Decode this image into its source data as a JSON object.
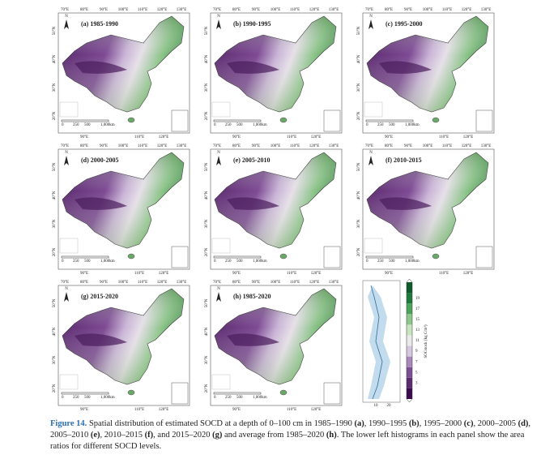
{
  "panels": [
    {
      "title": "(a) 1985-1990"
    },
    {
      "title": "(b) 1990-1995"
    },
    {
      "title": "(c) 1995-2000"
    },
    {
      "title": "(d) 2000-2005"
    },
    {
      "title": "(e) 2005-2010"
    },
    {
      "title": "(f) 2010-2015"
    },
    {
      "title": "(g) 2015-2020"
    },
    {
      "title": "(h) 1985-2020"
    }
  ],
  "map_labels": {
    "top": [
      "70°E",
      "80°E",
      "90°E",
      "100°E",
      "110°E",
      "120°E",
      "130°E"
    ],
    "left": [
      "50°N",
      "40°N",
      "30°N",
      "20°N"
    ],
    "bottom": [
      "90°E",
      "110°E",
      "120°E"
    ],
    "north": "N",
    "scale": [
      "0",
      "250",
      "500",
      "1,000km"
    ]
  },
  "legend": {
    "title": "SOCstock (kg C/m²)",
    "ticks": [
      "19",
      "17",
      "15",
      "13",
      "11",
      "9",
      "7",
      "5",
      "3"
    ],
    "hist_ticks": [
      "10",
      "20"
    ]
  },
  "caption": {
    "label": "Figure 14.",
    "segments": [
      {
        "text": " Spatial distribution of estimated SOCD at a depth of 0–100 cm in 1985–1990 ",
        "bold": false
      },
      {
        "text": "(a)",
        "bold": true
      },
      {
        "text": ", 1990–1995 ",
        "bold": false
      },
      {
        "text": "(b)",
        "bold": true
      },
      {
        "text": ", 1995–2000 ",
        "bold": false
      },
      {
        "text": "(c)",
        "bold": true
      },
      {
        "text": ", 2000–2005 ",
        "bold": false
      },
      {
        "text": "(d)",
        "bold": true
      },
      {
        "text": ", 2005–2010 ",
        "bold": false
      },
      {
        "text": "(e)",
        "bold": true
      },
      {
        "text": ", 2010–2015 ",
        "bold": false
      },
      {
        "text": "(f)",
        "bold": true
      },
      {
        "text": ", and 2015–2020 ",
        "bold": false
      },
      {
        "text": "(g)",
        "bold": true
      },
      {
        "text": " and average from 1985–2020 ",
        "bold": false
      },
      {
        "text": "(h)",
        "bold": true
      },
      {
        "text": ". The lower left histograms in each panel show the area ratios for different SOCD levels.",
        "bold": false
      }
    ]
  }
}
